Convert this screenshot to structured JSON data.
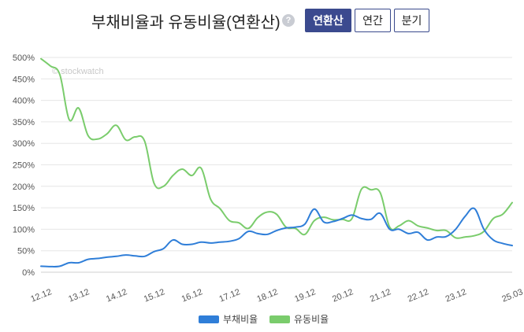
{
  "header": {
    "title": "부채비율과 유동비율(연환산)",
    "help_icon": "?",
    "buttons": [
      {
        "label": "연환산",
        "active": true
      },
      {
        "label": "연간",
        "active": false
      },
      {
        "label": "분기",
        "active": false
      }
    ]
  },
  "chart_data": {
    "type": "line",
    "watermark": "© stockwatch",
    "x_range": [
      2012.75,
      2025.25
    ],
    "x_ticks": [
      {
        "label": "12.12",
        "x": 2012.75
      },
      {
        "label": "13.12",
        "x": 2013.75
      },
      {
        "label": "14.12",
        "x": 2014.75
      },
      {
        "label": "15.12",
        "x": 2015.75
      },
      {
        "label": "16.12",
        "x": 2016.75
      },
      {
        "label": "17.12",
        "x": 2017.75
      },
      {
        "label": "18.12",
        "x": 2018.75
      },
      {
        "label": "19.12",
        "x": 2019.75
      },
      {
        "label": "20.12",
        "x": 2020.75
      },
      {
        "label": "21.12",
        "x": 2021.75
      },
      {
        "label": "22.12",
        "x": 2022.75
      },
      {
        "label": "23.12",
        "x": 2023.75
      },
      {
        "label": "25.03",
        "x": 2025.25
      }
    ],
    "y_range": [
      0,
      500
    ],
    "y_ticks": [
      "0%",
      "50%",
      "100%",
      "150%",
      "200%",
      "250%",
      "300%",
      "350%",
      "400%",
      "450%",
      "500%"
    ],
    "series": [
      {
        "name": "부채비율",
        "color": "#2f7ed8",
        "x": [
          2012.75,
          2013.0,
          2013.25,
          2013.5,
          2013.75,
          2014.0,
          2014.25,
          2014.5,
          2014.75,
          2015.0,
          2015.25,
          2015.5,
          2015.75,
          2016.0,
          2016.25,
          2016.5,
          2016.75,
          2017.0,
          2017.25,
          2017.5,
          2017.75,
          2018.0,
          2018.25,
          2018.5,
          2018.75,
          2019.0,
          2019.25,
          2019.5,
          2019.75,
          2020.0,
          2020.25,
          2020.5,
          2020.75,
          2021.0,
          2021.25,
          2021.5,
          2021.75,
          2022.0,
          2022.25,
          2022.5,
          2022.75,
          2023.0,
          2023.25,
          2023.5,
          2023.75,
          2024.0,
          2024.25,
          2024.5,
          2024.75,
          2025.0,
          2025.25
        ],
        "values": [
          14,
          13,
          14,
          22,
          22,
          30,
          32,
          35,
          37,
          40,
          38,
          37,
          48,
          55,
          75,
          65,
          65,
          70,
          68,
          70,
          72,
          78,
          95,
          90,
          88,
          97,
          103,
          105,
          112,
          147,
          117,
          118,
          125,
          133,
          125,
          123,
          137,
          100,
          100,
          90,
          93,
          75,
          82,
          83,
          100,
          130,
          148,
          100,
          75,
          67,
          62
        ]
      },
      {
        "name": "유동비율",
        "color": "#7acc6c",
        "x": [
          2012.75,
          2013.0,
          2013.25,
          2013.5,
          2013.75,
          2014.0,
          2014.25,
          2014.5,
          2014.75,
          2015.0,
          2015.25,
          2015.5,
          2015.75,
          2016.0,
          2016.25,
          2016.5,
          2016.75,
          2017.0,
          2017.25,
          2017.5,
          2017.75,
          2018.0,
          2018.25,
          2018.5,
          2018.75,
          2019.0,
          2019.25,
          2019.5,
          2019.75,
          2020.0,
          2020.25,
          2020.5,
          2020.75,
          2021.0,
          2021.25,
          2021.5,
          2021.75,
          2022.0,
          2022.25,
          2022.5,
          2022.75,
          2023.0,
          2023.25,
          2023.5,
          2023.75,
          2024.0,
          2024.25,
          2024.5,
          2024.75,
          2025.0,
          2025.25
        ],
        "values": [
          497,
          480,
          460,
          355,
          382,
          318,
          310,
          322,
          342,
          308,
          315,
          305,
          207,
          200,
          225,
          240,
          225,
          242,
          170,
          148,
          120,
          115,
          102,
          127,
          140,
          135,
          105,
          102,
          88,
          120,
          128,
          122,
          123,
          125,
          193,
          192,
          185,
          105,
          108,
          120,
          108,
          103,
          97,
          97,
          80,
          82,
          85,
          95,
          125,
          135,
          162
        ]
      }
    ],
    "legend": [
      "부채비율",
      "유동비율"
    ],
    "legend_position": "bottom",
    "grid": true
  }
}
